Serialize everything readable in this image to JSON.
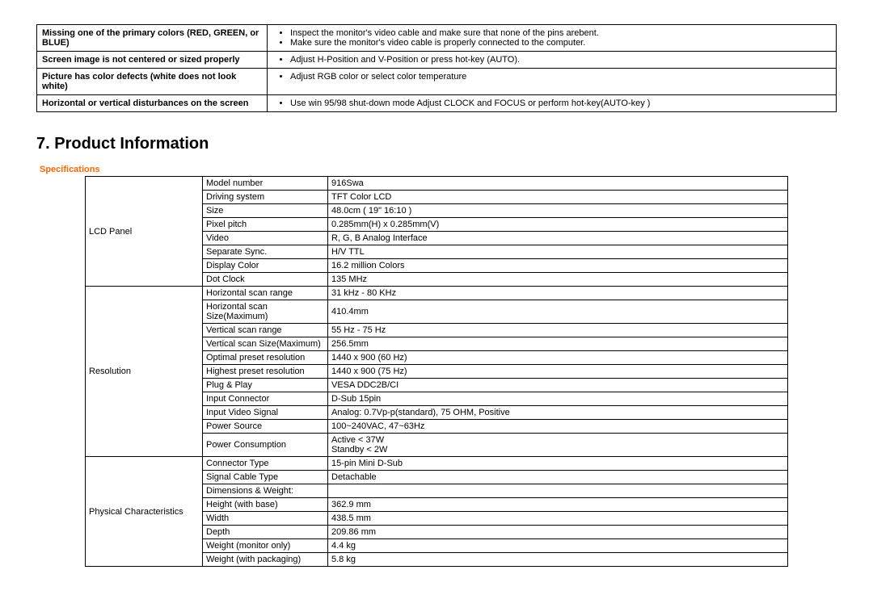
{
  "troubleshoot_rows": [
    {
      "issue": "Missing one of the primary colors (RED, GREEN, or BLUE)",
      "solutions": [
        "Inspect the monitor's video cable and make sure that none of the pins arebent.",
        "Make sure the monitor's video cable is properly connected to the computer."
      ]
    },
    {
      "issue": "Screen image is not centered or sized properly",
      "solutions": [
        "Adjust H-Position and V-Position or press hot-key (AUTO)."
      ]
    },
    {
      "issue": "Picture has color defects (white does not look white)",
      "solutions": [
        "Adjust RGB color or select color temperature"
      ]
    },
    {
      "issue": "Horizontal or vertical disturbances on the screen",
      "solutions": [
        "Use win 95/98 shut-down mode Adjust CLOCK and FOCUS or perform hot-key(AUTO-key )"
      ]
    }
  ],
  "heading": "7. Product Information",
  "section_label": "Specifications",
  "spec_groups": [
    {
      "category": "LCD Panel",
      "rows": [
        {
          "param": "Model number",
          "value": "916Swa"
        },
        {
          "param": "Driving system",
          "value": "TFT Color LCD"
        },
        {
          "param": "Size",
          "value": "48.0cm ( 19\" 16:10 )"
        },
        {
          "param": "Pixel pitch",
          "value": "0.285mm(H) x 0.285mm(V)"
        },
        {
          "param": "Video",
          "value": "R, G, B Analog Interface"
        },
        {
          "param": "Separate Sync.",
          "value": "H/V TTL"
        },
        {
          "param": "Display Color",
          "value": "16.2 million Colors"
        },
        {
          "param": "Dot Clock",
          "value": "135 MHz"
        }
      ]
    },
    {
      "category": "Resolution",
      "rows": [
        {
          "param": "Horizontal scan range",
          "value": "31 kHz - 80 KHz"
        },
        {
          "param": "Horizontal scan Size(Maximum)",
          "value": "410.4mm"
        },
        {
          "param": "Vertical scan range",
          "value": "55 Hz - 75 Hz"
        },
        {
          "param": "Vertical scan Size(Maximum)",
          "value": "256.5mm"
        },
        {
          "param": "Optimal preset resolution",
          "value": "1440 x 900 (60 Hz)"
        },
        {
          "param": "Highest preset resolution",
          "value": "1440 x 900 (75 Hz)"
        },
        {
          "param": "Plug & Play",
          "value": "VESA DDC2B/CI"
        },
        {
          "param": "Input Connector",
          "value": "D-Sub 15pin"
        },
        {
          "param": "Input Video Signal",
          "value": "Analog: 0.7Vp-p(standard), 75 OHM, Positive"
        },
        {
          "param": "Power Source",
          "value": "100~240VAC, 47~63Hz"
        },
        {
          "param": "Power Consumption",
          "value": "Active < 37W\nStandby < 2W"
        }
      ]
    },
    {
      "category": "Physical Characteristics",
      "rows": [
        {
          "param": "Connector Type",
          "value": "15-pin Mini D-Sub"
        },
        {
          "param": "Signal Cable Type",
          "value": "Detachable"
        },
        {
          "param": "Dimensions & Weight:",
          "value": ""
        },
        {
          "param": "Height (with base)",
          "value": "362.9 mm"
        },
        {
          "param": "Width",
          "value": "438.5 mm"
        },
        {
          "param": "Depth",
          "value": "209.86 mm"
        },
        {
          "param": "Weight (monitor only)",
          "value": "4.4 kg"
        },
        {
          "param": "Weight (with packaging)",
          "value": "5.8 kg"
        }
      ]
    }
  ]
}
